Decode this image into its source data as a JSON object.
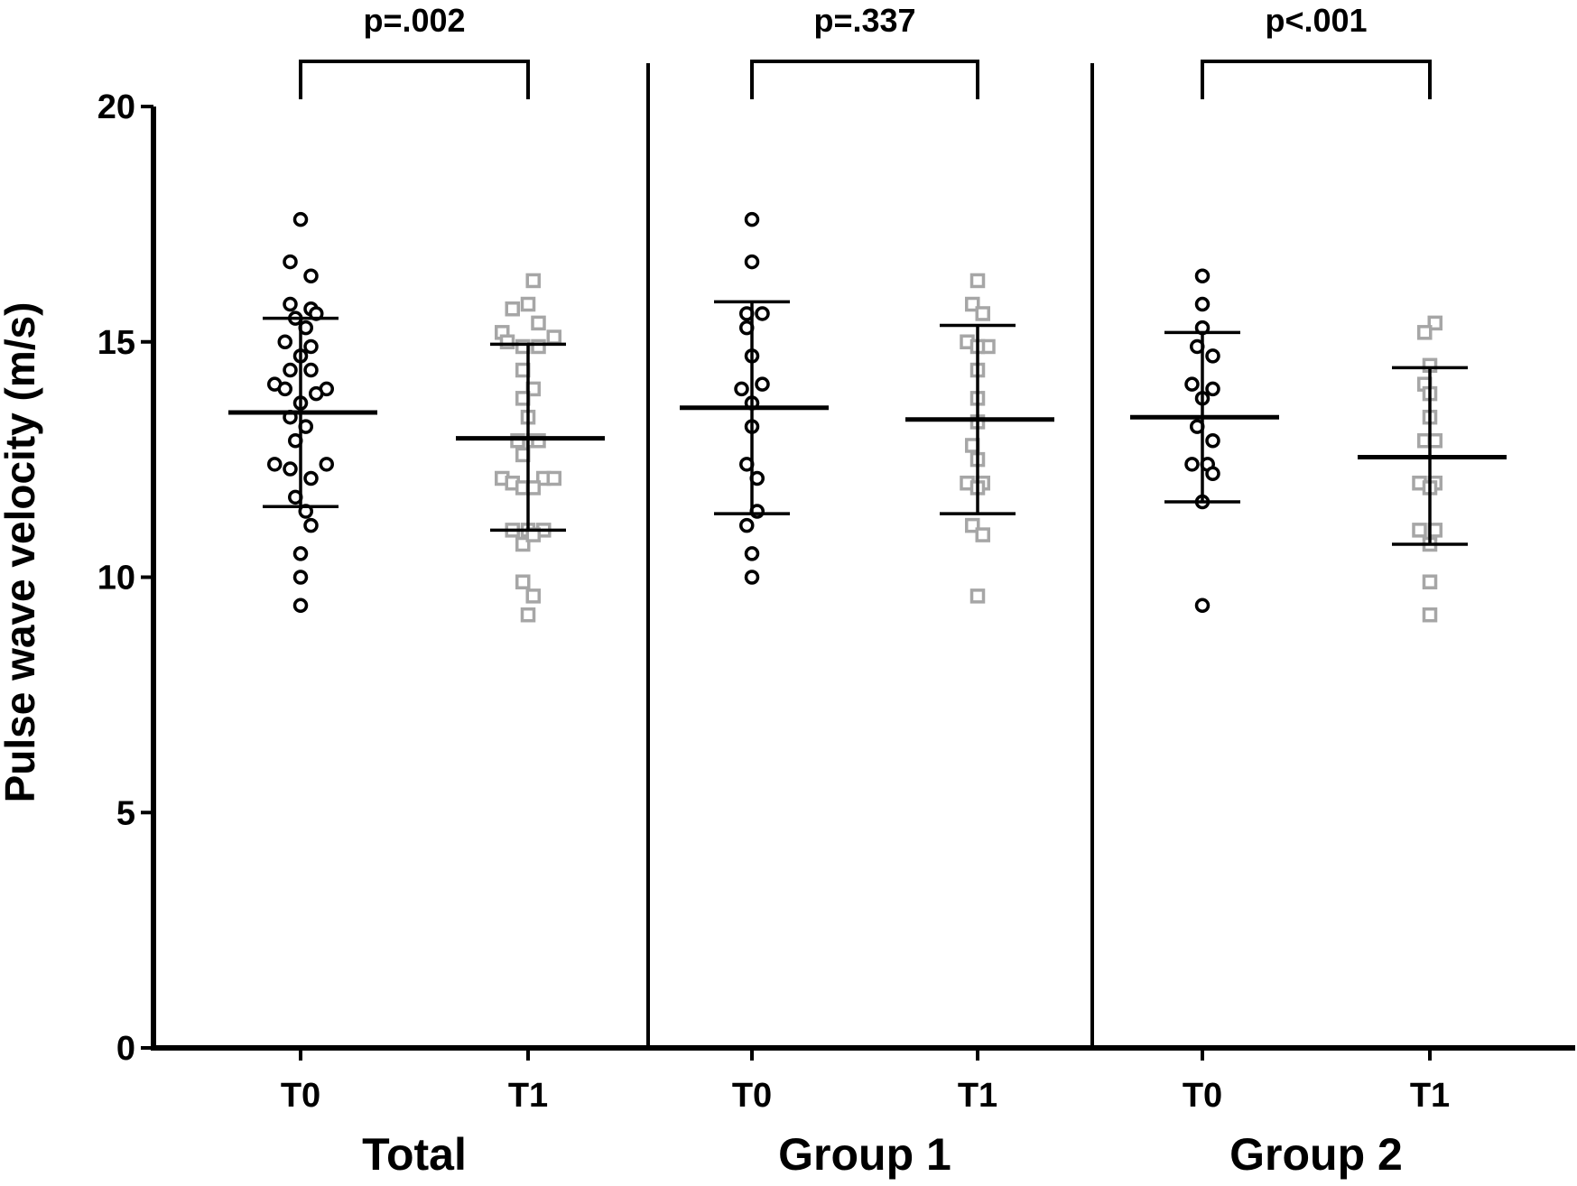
{
  "chart_data": {
    "type": "scatter",
    "ylabel": "Pulse wave velocity (m/s)",
    "ylim": [
      0,
      20
    ],
    "yticks": [
      0,
      5,
      10,
      15,
      20
    ],
    "grid": false,
    "groups": [
      {
        "name": "Total",
        "p_value": "p=.002",
        "series": [
          {
            "name": "T0",
            "marker": "circle",
            "color": "#000000",
            "mean": 13.5,
            "sd_low": 11.5,
            "sd_high": 15.5,
            "points": [
              [
                0,
                17.6
              ],
              [
                -0.1,
                16.7
              ],
              [
                0.1,
                16.4
              ],
              [
                -0.1,
                15.8
              ],
              [
                0.1,
                15.7
              ],
              [
                0.15,
                15.6
              ],
              [
                -0.05,
                15.5
              ],
              [
                0.05,
                15.3
              ],
              [
                -0.15,
                15.0
              ],
              [
                0.1,
                14.9
              ],
              [
                0,
                14.7
              ],
              [
                -0.1,
                14.4
              ],
              [
                0.1,
                14.4
              ],
              [
                -0.25,
                14.1
              ],
              [
                -0.15,
                14.0
              ],
              [
                0.25,
                14.0
              ],
              [
                0.15,
                13.9
              ],
              [
                0,
                13.7
              ],
              [
                -0.1,
                13.4
              ],
              [
                0.05,
                13.2
              ],
              [
                -0.05,
                12.9
              ],
              [
                -0.25,
                12.4
              ],
              [
                0.25,
                12.4
              ],
              [
                -0.1,
                12.3
              ],
              [
                0.1,
                12.1
              ],
              [
                -0.05,
                11.7
              ],
              [
                0.05,
                11.4
              ],
              [
                0.1,
                11.1
              ],
              [
                0,
                10.5
              ],
              [
                0,
                10.0
              ],
              [
                0,
                9.4
              ]
            ]
          },
          {
            "name": "T1",
            "marker": "square",
            "color": "#a6a6a6",
            "mean": 12.95,
            "sd_low": 11.0,
            "sd_high": 14.95,
            "points": [
              [
                0.05,
                16.3
              ],
              [
                0,
                15.8
              ],
              [
                -0.15,
                15.7
              ],
              [
                0.1,
                15.4
              ],
              [
                -0.25,
                15.2
              ],
              [
                0.25,
                15.1
              ],
              [
                -0.2,
                15.0
              ],
              [
                -0.05,
                14.9
              ],
              [
                0.1,
                14.9
              ],
              [
                -0.05,
                14.4
              ],
              [
                0.05,
                14.0
              ],
              [
                -0.05,
                13.8
              ],
              [
                0,
                13.4
              ],
              [
                -0.1,
                12.9
              ],
              [
                0.05,
                12.9
              ],
              [
                0.1,
                12.9
              ],
              [
                -0.05,
                12.6
              ],
              [
                -0.25,
                12.1
              ],
              [
                -0.15,
                12.0
              ],
              [
                0.15,
                12.1
              ],
              [
                0.25,
                12.1
              ],
              [
                -0.05,
                11.9
              ],
              [
                0.05,
                11.9
              ],
              [
                -0.15,
                11.0
              ],
              [
                0,
                11.0
              ],
              [
                0.15,
                11.0
              ],
              [
                -0.05,
                10.7
              ],
              [
                0.05,
                10.9
              ],
              [
                -0.05,
                9.9
              ],
              [
                0.05,
                9.6
              ],
              [
                0,
                9.2
              ]
            ]
          }
        ]
      },
      {
        "name": "Group 1",
        "p_value": "p=.337",
        "series": [
          {
            "name": "T0",
            "marker": "circle",
            "color": "#000000",
            "mean": 13.6,
            "sd_low": 11.35,
            "sd_high": 15.85,
            "points": [
              [
                0,
                17.6
              ],
              [
                0,
                16.7
              ],
              [
                -0.05,
                15.6
              ],
              [
                0.1,
                15.6
              ],
              [
                -0.05,
                15.3
              ],
              [
                0,
                14.7
              ],
              [
                -0.1,
                14.0
              ],
              [
                0.1,
                14.1
              ],
              [
                0,
                13.7
              ],
              [
                0,
                13.2
              ],
              [
                -0.05,
                12.4
              ],
              [
                0.05,
                12.1
              ],
              [
                0.05,
                11.4
              ],
              [
                -0.05,
                11.1
              ],
              [
                0,
                10.5
              ],
              [
                0,
                10.0
              ]
            ]
          },
          {
            "name": "T1",
            "marker": "square",
            "color": "#a6a6a6",
            "mean": 13.35,
            "sd_low": 11.35,
            "sd_high": 15.35,
            "points": [
              [
                0,
                16.3
              ],
              [
                -0.05,
                15.8
              ],
              [
                0.05,
                15.6
              ],
              [
                -0.1,
                15.0
              ],
              [
                0.1,
                14.9
              ],
              [
                0,
                14.9
              ],
              [
                0,
                14.4
              ],
              [
                0,
                13.8
              ],
              [
                0,
                13.3
              ],
              [
                -0.05,
                12.8
              ],
              [
                0,
                12.5
              ],
              [
                -0.1,
                12.0
              ],
              [
                0.05,
                12.0
              ],
              [
                0,
                11.9
              ],
              [
                -0.05,
                11.1
              ],
              [
                0.05,
                10.9
              ],
              [
                0,
                9.6
              ]
            ]
          }
        ]
      },
      {
        "name": "Group 2",
        "p_value": "p<.001",
        "series": [
          {
            "name": "T0",
            "marker": "circle",
            "color": "#000000",
            "mean": 13.4,
            "sd_low": 11.6,
            "sd_high": 15.2,
            "points": [
              [
                0,
                16.4
              ],
              [
                0,
                15.8
              ],
              [
                0,
                15.3
              ],
              [
                -0.05,
                14.9
              ],
              [
                0.1,
                14.7
              ],
              [
                -0.1,
                14.1
              ],
              [
                0.1,
                14.0
              ],
              [
                0,
                13.8
              ],
              [
                -0.05,
                13.2
              ],
              [
                0.1,
                12.9
              ],
              [
                -0.1,
                12.4
              ],
              [
                0.05,
                12.4
              ],
              [
                0.1,
                12.2
              ],
              [
                0,
                11.6
              ],
              [
                0,
                9.4
              ]
            ]
          },
          {
            "name": "T1",
            "marker": "square",
            "color": "#a6a6a6",
            "mean": 12.55,
            "sd_low": 10.7,
            "sd_high": 14.45,
            "points": [
              [
                0.05,
                15.4
              ],
              [
                -0.05,
                15.2
              ],
              [
                0,
                14.5
              ],
              [
                -0.05,
                14.1
              ],
              [
                0,
                13.9
              ],
              [
                0,
                13.4
              ],
              [
                -0.05,
                12.9
              ],
              [
                0.05,
                12.9
              ],
              [
                -0.1,
                12.0
              ],
              [
                0.05,
                12.0
              ],
              [
                0,
                11.9
              ],
              [
                -0.1,
                11.0
              ],
              [
                0.05,
                11.0
              ],
              [
                0,
                10.7
              ],
              [
                0,
                9.9
              ],
              [
                0,
                9.2
              ]
            ]
          }
        ]
      }
    ]
  }
}
